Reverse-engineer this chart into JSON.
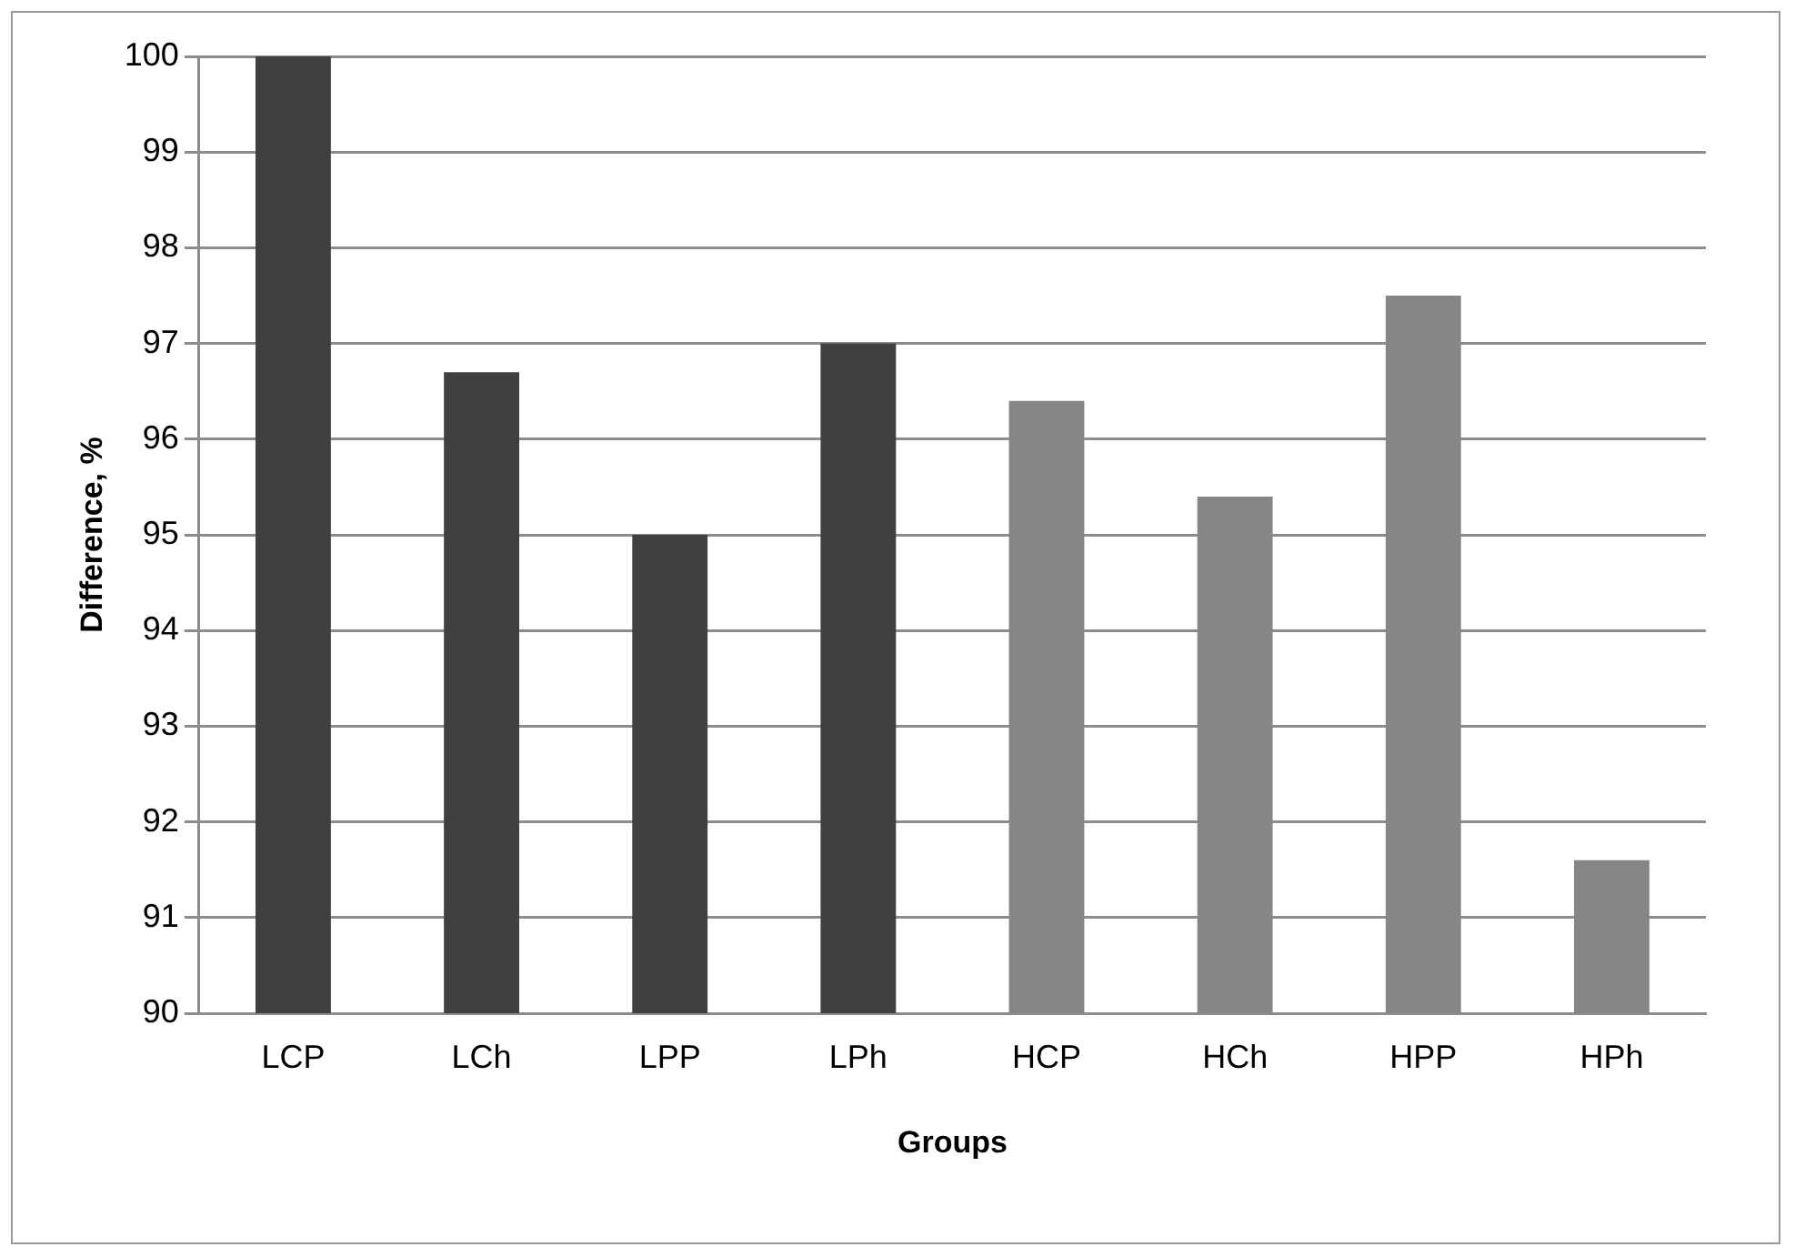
{
  "chart_data": {
    "type": "bar",
    "xlabel": "Groups",
    "ylabel": "Difference, %",
    "categories": [
      "LCP",
      "LCh",
      "LPP",
      "LPh",
      "HCP",
      "HCh",
      "HPP",
      "HPh"
    ],
    "values": [
      100,
      96.7,
      95.0,
      97.0,
      96.4,
      95.4,
      97.5,
      91.6
    ],
    "colors": [
      "#404040",
      "#404040",
      "#404040",
      "#404040",
      "#868686",
      "#868686",
      "#868686",
      "#868686"
    ],
    "ylim": [
      90,
      100
    ],
    "yticks": [
      90,
      91,
      92,
      93,
      94,
      95,
      96,
      97,
      98,
      99,
      100
    ],
    "grid": "y",
    "legend": false
  }
}
